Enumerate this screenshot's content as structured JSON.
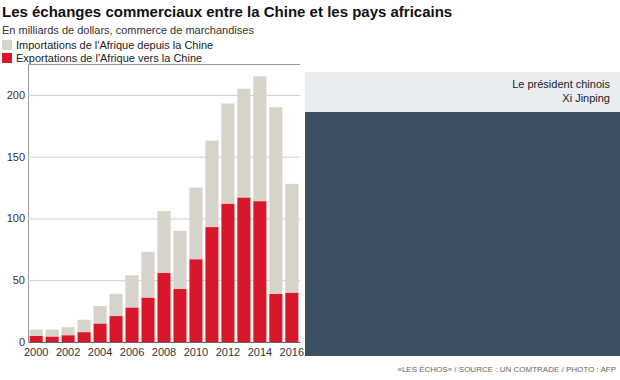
{
  "chart_data": {
    "type": "bar",
    "title": "Les échanges commerciaux entre la Chine et les pays africains",
    "subtitle": "En milliards de dollars, commerce de marchandises",
    "annotations": [
      "Le président chinois",
      "Xi Jinping",
      "«LES ÉCHOS» / SOURCE : UN COMTRADE / PHOTO : AFP"
    ],
    "categories": [
      "2000",
      null,
      "2002",
      null,
      "2004",
      null,
      "2006",
      null,
      "2008",
      null,
      "2010",
      null,
      "2012",
      null,
      "2014",
      null,
      "2016"
    ],
    "series": [
      {
        "name": "Importations de l'Afrique depuis la Chine",
        "color": "#d6d3c8",
        "values": [
          5,
          5.5,
          6.5,
          10,
          14,
          18,
          26,
          37,
          50,
          47,
          58,
          70,
          81,
          88,
          101,
          151,
          88
        ]
      },
      {
        "name": "Exportations de l'Afrique vers la Chine",
        "color": "#d9172a",
        "values": [
          5,
          4.5,
          5.5,
          8,
          15,
          21,
          28,
          36,
          56,
          43,
          67,
          93,
          112,
          117,
          114,
          39,
          40
        ]
      }
    ],
    "stacked": true,
    "ylim": [
      0,
      225
    ],
    "yticks": [
      0,
      50,
      100,
      150,
      200
    ],
    "grid": true,
    "legend": "top-left"
  }
}
